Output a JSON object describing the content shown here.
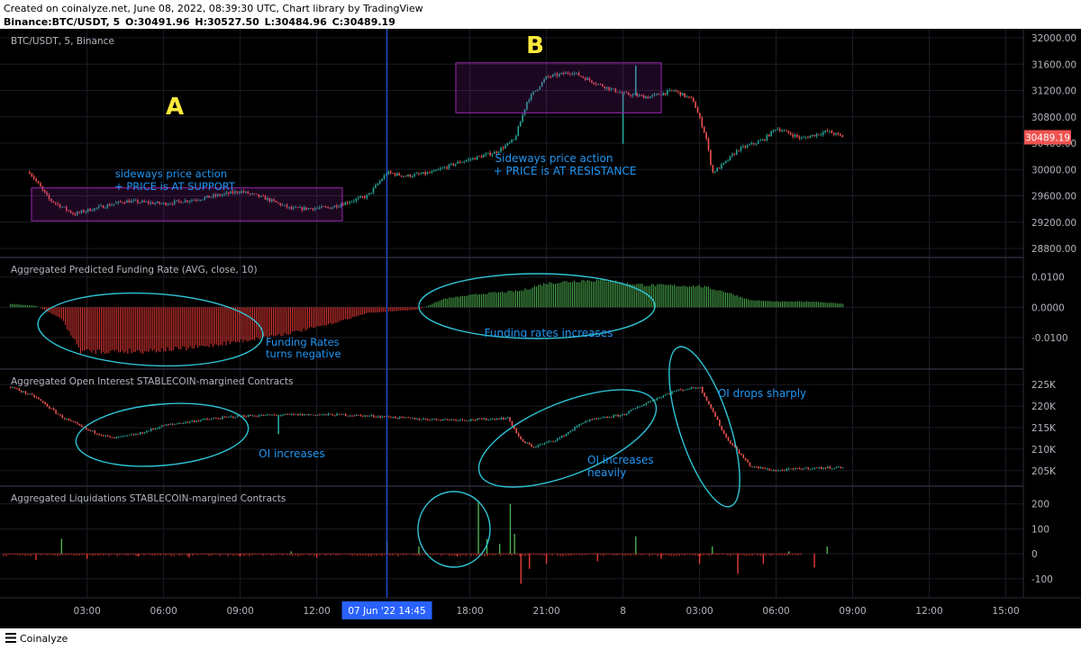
{
  "header": {
    "line1": "Created on coinalyze.net, June 08, 2022, 08:39:30 UTC, Chart library by TradingView",
    "symbol": "Binance:BTC/USDT, 5",
    "o": "O:30491.96",
    "h": "H:30527.50",
    "l": "L:30484.96",
    "c": "C:30489.19"
  },
  "footer": {
    "brand": "Coinalyze"
  },
  "colors": {
    "up": "#26a69a",
    "down": "#ef5350",
    "bar_up": "#4caf50",
    "bar_down": "#e53935",
    "annotation": "#2196f3",
    "box": "#9c27b0",
    "marker": "#ffeb3b",
    "circle": "#2ec4d6",
    "last": "#ef5350"
  },
  "chart_data": [
    {
      "type": "candlestick",
      "name": "price",
      "title": "BTC/USDT, 5, Binance",
      "ylim": [
        28800,
        32000
      ],
      "yticks": [
        "32000.00",
        "31600.00",
        "31200.00",
        "30800.00",
        "30400.00",
        "30000.00",
        "29600.00",
        "29200.00",
        "28800.00"
      ],
      "last_price": "30489.19",
      "keypoints": [
        {
          "t": "00:45",
          "v": 29960
        },
        {
          "t": "01:30",
          "v": 29550
        },
        {
          "t": "02:30",
          "v": 29320
        },
        {
          "t": "03:00",
          "v": 29380
        },
        {
          "t": "04:30",
          "v": 29520
        },
        {
          "t": "06:00",
          "v": 29480
        },
        {
          "t": "07:30",
          "v": 29560
        },
        {
          "t": "09:00",
          "v": 29670
        },
        {
          "t": "10:00",
          "v": 29560
        },
        {
          "t": "11:00",
          "v": 29400
        },
        {
          "t": "12:30",
          "v": 29420
        },
        {
          "t": "14:00",
          "v": 29600
        },
        {
          "t": "14:45",
          "v": 29950
        },
        {
          "t": "15:30",
          "v": 29900
        },
        {
          "t": "16:30",
          "v": 29950
        },
        {
          "t": "17:30",
          "v": 30100
        },
        {
          "t": "19:00",
          "v": 30260
        },
        {
          "t": "19:45",
          "v": 30450
        },
        {
          "t": "20:15",
          "v": 31050
        },
        {
          "t": "21:00",
          "v": 31400
        },
        {
          "t": "22:00",
          "v": 31480
        },
        {
          "t": "23:00",
          "v": 31300
        },
        {
          "t": "00:00",
          "v": 31150
        },
        {
          "t": "01:00",
          "v": 31100
        },
        {
          "t": "02:00",
          "v": 31200
        },
        {
          "t": "02:45",
          "v": 31050
        },
        {
          "t": "03:15",
          "v": 30500
        },
        {
          "t": "03:30",
          "v": 29950
        },
        {
          "t": "04:00",
          "v": 30100
        },
        {
          "t": "04:30",
          "v": 30300
        },
        {
          "t": "05:30",
          "v": 30450
        },
        {
          "t": "06:00",
          "v": 30630
        },
        {
          "t": "07:00",
          "v": 30470
        },
        {
          "t": "08:00",
          "v": 30580
        },
        {
          "t": "08:40",
          "v": 30489
        }
      ],
      "spikes": [
        {
          "t": "00:00",
          "low": 30390
        },
        {
          "t": "00:30",
          "high": 31580
        }
      ]
    },
    {
      "type": "bar",
      "name": "funding",
      "title": "Aggregated Predicted Funding Rate (AVG, close, 10)",
      "ylim": [
        -0.0175,
        0.0135
      ],
      "yticks": [
        "0.0100",
        "0.0000",
        "-0.0100"
      ],
      "keypoints": [
        {
          "t": "00:00",
          "v": 0.0012
        },
        {
          "t": "01:00",
          "v": 0.0005
        },
        {
          "t": "02:00",
          "v": -0.004
        },
        {
          "t": "02:45",
          "v": -0.0155
        },
        {
          "t": "05:00",
          "v": -0.0155
        },
        {
          "t": "07:00",
          "v": -0.0145
        },
        {
          "t": "09:00",
          "v": -0.012
        },
        {
          "t": "11:00",
          "v": -0.009
        },
        {
          "t": "12:30",
          "v": -0.006
        },
        {
          "t": "14:00",
          "v": -0.002
        },
        {
          "t": "16:00",
          "v": -0.0008
        },
        {
          "t": "17:00",
          "v": 0.003
        },
        {
          "t": "18:30",
          "v": 0.0048
        },
        {
          "t": "20:00",
          "v": 0.0058
        },
        {
          "t": "21:00",
          "v": 0.0085
        },
        {
          "t": "22:30",
          "v": 0.0095
        },
        {
          "t": "23:30",
          "v": 0.0095
        },
        {
          "t": "00:00",
          "v": 0.0085
        },
        {
          "t": "01:00",
          "v": 0.0078
        },
        {
          "t": "03:00",
          "v": 0.0075
        },
        {
          "t": "04:00",
          "v": 0.0055
        },
        {
          "t": "05:00",
          "v": 0.0025
        },
        {
          "t": "06:00",
          "v": 0.002
        },
        {
          "t": "07:30",
          "v": 0.002
        },
        {
          "t": "08:40",
          "v": 0.0012
        }
      ]
    },
    {
      "type": "candlestick",
      "name": "open_interest",
      "title": "Aggregated Open Interest STABLECOIN-margined Contracts",
      "ylim": [
        203500,
        226500
      ],
      "yticks": [
        "225K",
        "220K",
        "215K",
        "210K",
        "205K"
      ],
      "keypoints": [
        {
          "t": "00:00",
          "v": 224500
        },
        {
          "t": "01:00",
          "v": 222000
        },
        {
          "t": "02:00",
          "v": 217500
        },
        {
          "t": "03:00",
          "v": 214500
        },
        {
          "t": "04:00",
          "v": 212500
        },
        {
          "t": "05:00",
          "v": 213500
        },
        {
          "t": "06:00",
          "v": 215500
        },
        {
          "t": "07:30",
          "v": 216800
        },
        {
          "t": "09:00",
          "v": 217700
        },
        {
          "t": "11:00",
          "v": 218000
        },
        {
          "t": "13:00",
          "v": 218000
        },
        {
          "t": "14:45",
          "v": 217500
        },
        {
          "t": "16:00",
          "v": 217000
        },
        {
          "t": "18:00",
          "v": 216800
        },
        {
          "t": "19:30",
          "v": 217200
        },
        {
          "t": "20:00",
          "v": 212000
        },
        {
          "t": "20:30",
          "v": 210500
        },
        {
          "t": "21:30",
          "v": 212500
        },
        {
          "t": "22:30",
          "v": 216500
        },
        {
          "t": "00:00",
          "v": 218000
        },
        {
          "t": "01:00",
          "v": 221000
        },
        {
          "t": "02:00",
          "v": 223500
        },
        {
          "t": "03:00",
          "v": 224500
        },
        {
          "t": "03:30",
          "v": 219000
        },
        {
          "t": "04:00",
          "v": 213000
        },
        {
          "t": "05:00",
          "v": 206000
        },
        {
          "t": "06:00",
          "v": 205000
        },
        {
          "t": "07:00",
          "v": 205500
        },
        {
          "t": "08:40",
          "v": 205800
        }
      ],
      "spikes": [
        {
          "t": "10:30",
          "low": 213500
        }
      ]
    },
    {
      "type": "bar",
      "name": "liquidations",
      "title": "Aggregated Liquidations STABLECOIN-margined Contracts",
      "ylim": [
        -140,
        235
      ],
      "yticks": [
        "200",
        "100",
        "0",
        "-100"
      ],
      "bars": [
        {
          "t": "01:00",
          "v": -25
        },
        {
          "t": "02:00",
          "v": 60
        },
        {
          "t": "03:00",
          "v": -20
        },
        {
          "t": "05:00",
          "v": -10
        },
        {
          "t": "07:00",
          "v": -15
        },
        {
          "t": "09:00",
          "v": -10
        },
        {
          "t": "11:00",
          "v": 10
        },
        {
          "t": "12:00",
          "v": -15
        },
        {
          "t": "14:45",
          "v": 50
        },
        {
          "t": "16:00",
          "v": 30
        },
        {
          "t": "17:30",
          "v": -10
        },
        {
          "t": "18:20",
          "v": 210
        },
        {
          "t": "18:40",
          "v": 60
        },
        {
          "t": "19:10",
          "v": 40
        },
        {
          "t": "19:35",
          "v": 200
        },
        {
          "t": "19:45",
          "v": 80
        },
        {
          "t": "20:00",
          "v": -120
        },
        {
          "t": "20:20",
          "v": -60
        },
        {
          "t": "21:00",
          "v": -40
        },
        {
          "t": "23:00",
          "v": -30
        },
        {
          "t": "00:30",
          "v": 70
        },
        {
          "t": "01:30",
          "v": -20
        },
        {
          "t": "03:00",
          "v": -40
        },
        {
          "t": "03:30",
          "v": 30
        },
        {
          "t": "04:30",
          "v": -80
        },
        {
          "t": "05:30",
          "v": -40
        },
        {
          "t": "06:30",
          "v": 10
        },
        {
          "t": "07:30",
          "v": -55
        },
        {
          "t": "08:00",
          "v": 30
        }
      ]
    }
  ],
  "x_axis": {
    "ticks": [
      "03:00",
      "06:00",
      "09:00",
      "12:00",
      "18:00",
      "21:00",
      "8",
      "03:00",
      "06:00",
      "09:00",
      "12:00",
      "15:00"
    ],
    "crosshair_label": "07 Jun '22   14:45"
  },
  "annotations": {
    "label_a": "A",
    "label_b": "B",
    "sideways_support": [
      "sideways price action",
      "+ PRICE is AT SUPPORT"
    ],
    "sideways_resistance": [
      "Sideways price action",
      "+ PRICE is AT RESISTANCE"
    ],
    "funding_negative": [
      "Funding Rates",
      "turns negative"
    ],
    "funding_increases": "Funding rates increases",
    "oi_increases": "OI increases",
    "oi_increases_heavily": [
      "OI increases",
      "heavily"
    ],
    "oi_drops": "OI drops sharply"
  }
}
